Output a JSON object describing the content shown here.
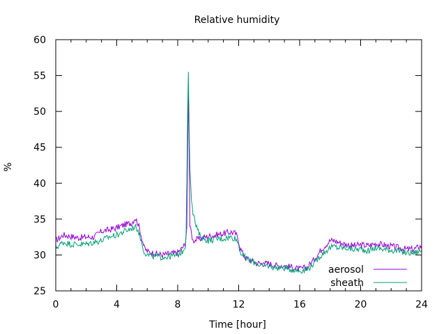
{
  "chart_data": {
    "type": "line",
    "title": "Relative humidity",
    "xlabel": "Time [hour]",
    "ylabel": "%",
    "xlim": [
      0,
      24
    ],
    "ylim": [
      25,
      60
    ],
    "xticks": [
      0,
      4,
      8,
      12,
      16,
      20,
      24
    ],
    "yticks": [
      25,
      30,
      35,
      40,
      45,
      50,
      55,
      60
    ],
    "grid": false,
    "legend": "bottom-right",
    "series": [
      {
        "name": "aerosol",
        "color": "#9400d3",
        "x": [
          0,
          0.5,
          1,
          1.5,
          2,
          2.5,
          3,
          3.5,
          4,
          4.5,
          5,
          5.2,
          5.4,
          5.6,
          5.8,
          6,
          6.5,
          7,
          7.5,
          8,
          8.3,
          8.5,
          8.6,
          8.65,
          8.7,
          8.75,
          8.8,
          9,
          9.5,
          10,
          10.5,
          11,
          11.5,
          11.8,
          12,
          12.1,
          12.3,
          12.5,
          13,
          13.5,
          14,
          14.5,
          15,
          15.5,
          16,
          16.5,
          17,
          17.5,
          18,
          18.3,
          18.5,
          19,
          19.5,
          20,
          20.5,
          21,
          21.5,
          22,
          22.5,
          23,
          23.5,
          24
        ],
        "y": [
          32,
          32.8,
          32.6,
          32.4,
          32.5,
          32.5,
          33.3,
          33.5,
          33.8,
          34.2,
          34.5,
          35.2,
          34.4,
          32.8,
          31,
          30.5,
          30.2,
          30.0,
          30.2,
          30.3,
          31,
          31.5,
          34,
          44,
          53,
          45,
          34,
          32,
          32.3,
          32.6,
          32.8,
          33.0,
          33.2,
          33.0,
          32.0,
          31.0,
          30.0,
          29.5,
          29.0,
          28.8,
          28.8,
          28.5,
          28.5,
          28.3,
          28.0,
          28.3,
          29.5,
          31.0,
          32.0,
          32.0,
          31.8,
          31.5,
          31.3,
          31.4,
          31.3,
          31.6,
          31.4,
          31.2,
          31.0,
          30.8,
          30.8,
          31.3
        ]
      },
      {
        "name": "sheath",
        "color": "#009e73",
        "x": [
          0,
          0.5,
          1,
          1.5,
          2,
          2.5,
          3,
          3.5,
          4,
          4.5,
          5,
          5.2,
          5.4,
          5.6,
          5.8,
          6,
          6.5,
          7,
          7.5,
          8,
          8.3,
          8.5,
          8.55,
          8.6,
          8.65,
          8.7,
          8.75,
          8.8,
          8.9,
          9,
          9.2,
          9.5,
          10,
          10.5,
          11,
          11.5,
          11.8,
          12,
          12.1,
          12.3,
          12.5,
          13,
          13.5,
          14,
          14.5,
          15,
          15.5,
          16,
          16.5,
          17,
          17.5,
          18,
          18.3,
          18.5,
          19,
          19.5,
          20,
          20.5,
          21,
          21.5,
          22,
          22.5,
          23,
          23.5,
          24
        ],
        "y": [
          31,
          31.8,
          31.5,
          31.5,
          31.5,
          31.8,
          32.0,
          32.5,
          32.8,
          33.3,
          33.7,
          34.0,
          33.5,
          32.0,
          30.5,
          30.0,
          29.8,
          29.7,
          29.8,
          30.0,
          30.5,
          31.2,
          33,
          40,
          50,
          55.5,
          48,
          42,
          38,
          36,
          34,
          32.5,
          32.0,
          32.2,
          32.3,
          32.5,
          32.3,
          31.5,
          30.5,
          29.8,
          29.5,
          29.0,
          28.5,
          28.5,
          28.2,
          28.2,
          28.0,
          27.8,
          28.0,
          29.0,
          30.2,
          31.0,
          31.2,
          31.0,
          31.0,
          30.8,
          30.8,
          30.6,
          31.0,
          30.8,
          30.7,
          30.5,
          30.3,
          30.3,
          30.6
        ]
      }
    ]
  }
}
